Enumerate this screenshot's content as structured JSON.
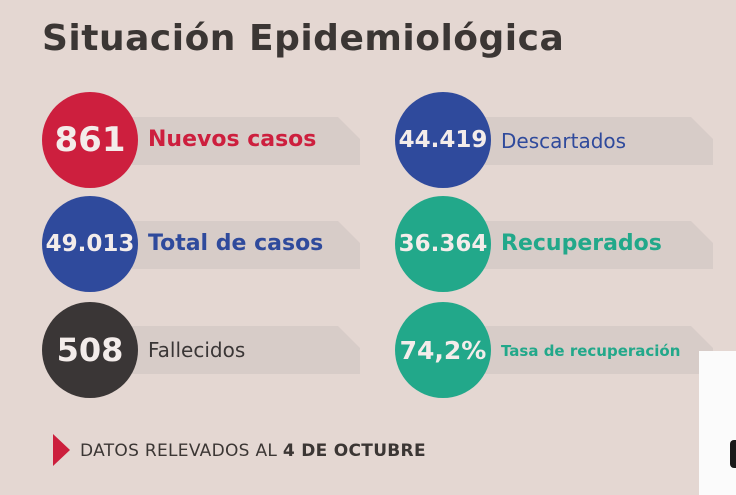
{
  "title": "Situación Epidemiológica",
  "colors": {
    "red": "#cd1f3e",
    "blue": "#2f4a9c",
    "dark": "#3a3636",
    "green": "#22a88a",
    "background": "#e4d7d2"
  },
  "stats": [
    {
      "value": "861",
      "label": "Nuevos casos",
      "color": "#cd1f3e"
    },
    {
      "value": "49.013",
      "label": "Total de casos",
      "color": "#2f4a9c"
    },
    {
      "value": "508",
      "label": "Fallecidos",
      "color": "#3a3636"
    },
    {
      "value": "44.419",
      "label": "Descartados",
      "color": "#2f4a9c"
    },
    {
      "value": "36.364",
      "label": "Recuperados",
      "color": "#22a88a"
    },
    {
      "value": "74,2%",
      "label": "Tasa de recuperación",
      "color": "#22a88a"
    }
  ],
  "footer": {
    "prefix": "DATOS RELEVADOS AL ",
    "date": "4 DE OCTUBRE"
  }
}
